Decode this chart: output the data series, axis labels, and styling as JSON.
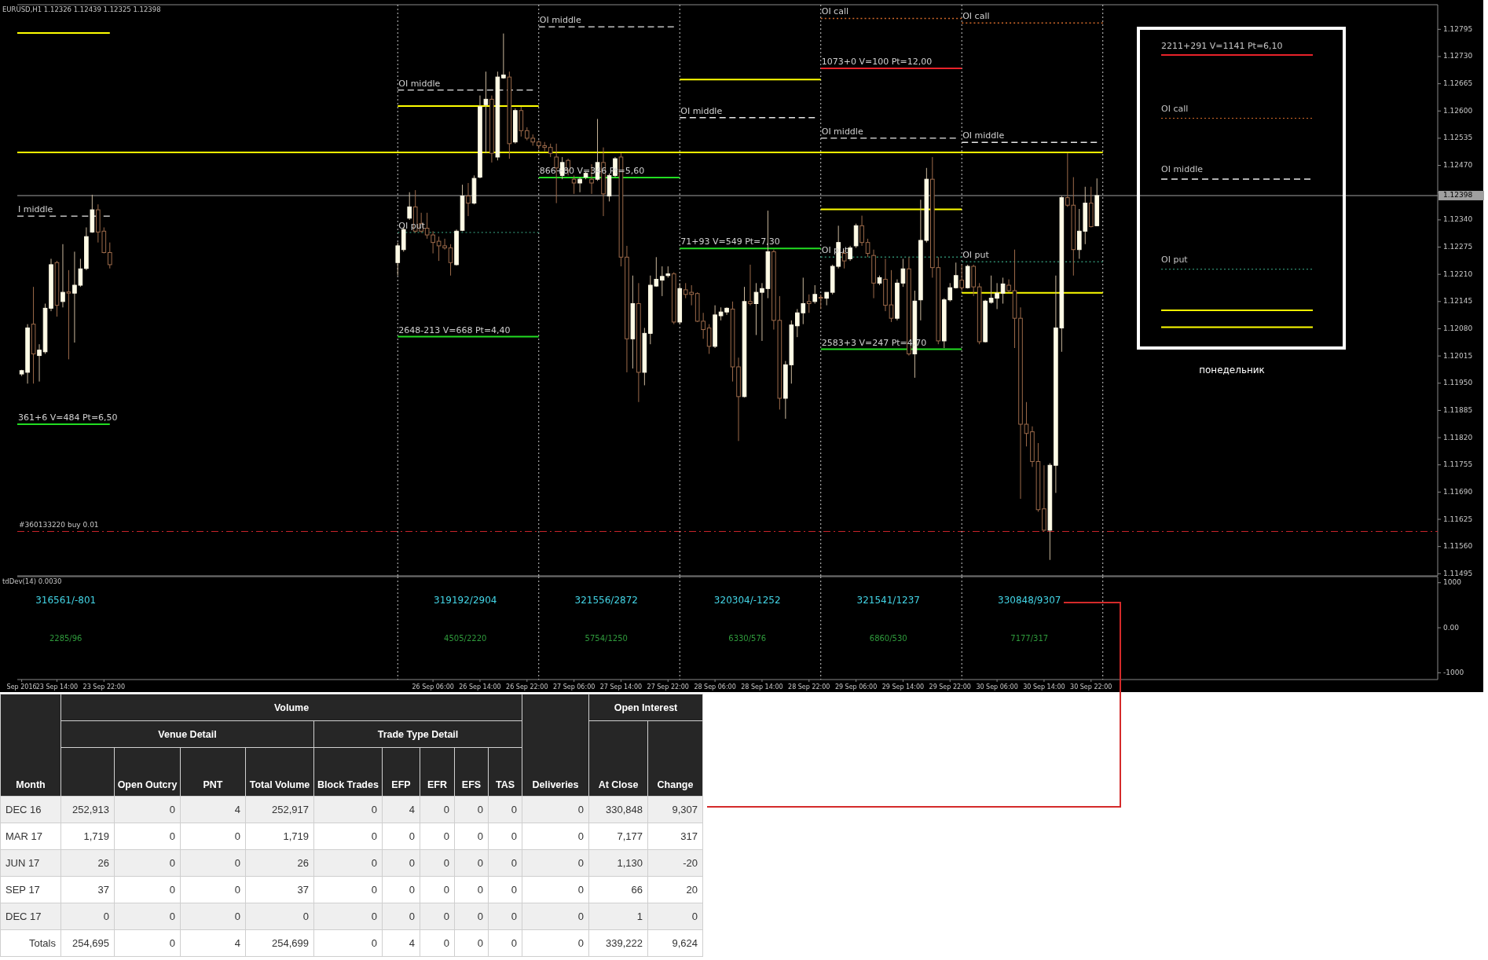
{
  "chart_data": [
    {
      "type": "candlestick",
      "title": "EURUSD,H1  1.12326 1.12439 1.12325 1.12398",
      "tick_labels": "y",
      "xlim": [
        "2016-09-23T07:15",
        "2016-10-03T09:00"
      ],
      "ylim": [
        1.1149,
        1.1285
      ],
      "yticks": [
        1.11495,
        {
          "value": 1.1156,
          "label": "1.11560"
        },
        1.11625,
        {
          "value": 1.1169,
          "label": "1.11690"
        },
        1.11755,
        {
          "value": 1.1182,
          "label": "1.11820"
        },
        1.11885,
        {
          "value": 1.1195,
          "label": "1.11950"
        },
        1.12015,
        {
          "value": 1.1208,
          "label": "1.12080"
        },
        1.12145,
        {
          "value": 1.1221,
          "label": "1.12210"
        },
        1.12275,
        {
          "value": 1.1234,
          "label": "1.12340"
        },
        {
          "value": 1.12405,
          "label": null
        },
        {
          "value": 1.1247,
          "label": "1.12470"
        },
        1.12535,
        {
          "value": 1.126,
          "label": "1.12600"
        },
        1.12665,
        {
          "value": 1.1273,
          "label": "1.12730"
        },
        1.12795
      ],
      "x": [
        "2016-09-23T08:00",
        "2016-09-23T09:00",
        "2016-09-23T10:00",
        "2016-09-23T11:00",
        "2016-09-23T12:00",
        "2016-09-23T13:00",
        "2016-09-23T14:00",
        "2016-09-23T15:00",
        "2016-09-23T16:00",
        "2016-09-23T17:00",
        "2016-09-23T18:00",
        "2016-09-23T19:00",
        "2016-09-23T20:00",
        "2016-09-23T21:00",
        "2016-09-23T22:00",
        "2016-09-23T23:00",
        "2016-09-26T00:00",
        "2016-09-26T01:00",
        "2016-09-26T02:00",
        "2016-09-26T03:00",
        "2016-09-26T04:00",
        "2016-09-26T05:00",
        "2016-09-26T06:00",
        "2016-09-26T07:00",
        "2016-09-26T08:00",
        "2016-09-26T09:00",
        "2016-09-26T10:00",
        "2016-09-26T11:00",
        "2016-09-26T12:00",
        "2016-09-26T13:00",
        "2016-09-26T14:00",
        "2016-09-26T15:00",
        "2016-09-26T16:00",
        "2016-09-26T17:00",
        "2016-09-26T18:00",
        "2016-09-26T19:00",
        "2016-09-26T20:00",
        "2016-09-26T21:00",
        "2016-09-26T22:00",
        "2016-09-26T23:00",
        "2016-09-27T00:00",
        "2016-09-27T01:00",
        "2016-09-27T02:00",
        "2016-09-27T03:00",
        "2016-09-27T04:00",
        "2016-09-27T05:00",
        "2016-09-27T06:00",
        "2016-09-27T07:00",
        "2016-09-27T08:00",
        "2016-09-27T09:00",
        "2016-09-27T10:00",
        "2016-09-27T11:00",
        "2016-09-27T12:00",
        "2016-09-27T13:00",
        "2016-09-27T14:00",
        "2016-09-27T15:00",
        "2016-09-27T16:00",
        "2016-09-27T17:00",
        "2016-09-27T18:00",
        "2016-09-27T19:00",
        "2016-09-27T20:00",
        "2016-09-27T21:00",
        "2016-09-27T22:00",
        "2016-09-27T23:00",
        "2016-09-28T00:00",
        "2016-09-28T01:00",
        "2016-09-28T02:00",
        "2016-09-28T03:00",
        "2016-09-28T04:00",
        "2016-09-28T05:00",
        "2016-09-28T06:00",
        "2016-09-28T07:00",
        "2016-09-28T08:00",
        "2016-09-28T09:00",
        "2016-09-28T10:00",
        "2016-09-28T11:00",
        "2016-09-28T12:00",
        "2016-09-28T13:00",
        "2016-09-28T14:00",
        "2016-09-28T15:00",
        "2016-09-28T16:00",
        "2016-09-28T17:00",
        "2016-09-28T18:00",
        "2016-09-28T19:00",
        "2016-09-28T20:00",
        "2016-09-28T21:00",
        "2016-09-28T22:00",
        "2016-09-28T23:00",
        "2016-09-29T00:00",
        "2016-09-29T01:00",
        "2016-09-29T02:00",
        "2016-09-29T03:00",
        "2016-09-29T04:00",
        "2016-09-29T05:00",
        "2016-09-29T06:00",
        "2016-09-29T07:00",
        "2016-09-29T08:00",
        "2016-09-29T09:00",
        "2016-09-29T10:00",
        "2016-09-29T11:00",
        "2016-09-29T12:00",
        "2016-09-29T13:00",
        "2016-09-29T14:00",
        "2016-09-29T15:00",
        "2016-09-29T16:00",
        "2016-09-29T17:00",
        "2016-09-29T18:00",
        "2016-09-29T19:00",
        "2016-09-29T20:00",
        "2016-09-29T21:00",
        "2016-09-29T22:00",
        "2016-09-29T23:00",
        "2016-09-30T00:00",
        "2016-09-30T01:00",
        "2016-09-30T02:00",
        "2016-09-30T03:00",
        "2016-09-30T04:00",
        "2016-09-30T05:00",
        "2016-09-30T06:00",
        "2016-09-30T07:00",
        "2016-09-30T08:00",
        "2016-09-30T09:00",
        "2016-09-30T10:00",
        "2016-09-30T11:00",
        "2016-09-30T12:00",
        "2016-09-30T13:00",
        "2016-09-30T14:00",
        "2016-09-30T15:00",
        "2016-09-30T16:00",
        "2016-09-30T17:00",
        "2016-09-30T18:00",
        "2016-09-30T19:00",
        "2016-09-30T20:00",
        "2016-09-30T21:00",
        "2016-09-30T22:00",
        "2016-09-30T23:00"
      ],
      "ohlc": [
        [
          1.11972,
          1.11982,
          1.11967,
          1.1198
        ],
        [
          1.11976,
          1.12091,
          1.11949,
          1.12082
        ],
        [
          1.12091,
          1.1218,
          1.11949,
          1.1202
        ],
        [
          1.12016,
          1.12043,
          1.11954,
          1.12029
        ],
        [
          1.12025,
          1.1214,
          1.1202,
          1.12129
        ],
        [
          1.12129,
          1.12247,
          1.12122,
          1.12233
        ],
        [
          1.12238,
          1.12242,
          1.12109,
          1.12136
        ],
        [
          1.12145,
          1.12282,
          1.12131,
          1.12167
        ],
        [
          1.12168,
          1.1222,
          1.12007,
          1.12165
        ],
        [
          1.12165,
          1.12264,
          1.12047,
          1.12184
        ],
        [
          1.12184,
          1.12247,
          1.1218,
          1.12223
        ],
        [
          1.12224,
          1.12322,
          1.1222,
          1.123
        ],
        [
          1.12311,
          1.124,
          1.12309,
          1.12364
        ],
        [
          1.12364,
          1.12377,
          1.12286,
          1.12311
        ],
        [
          1.12313,
          1.12322,
          1.1226,
          1.12262
        ],
        [
          1.12262,
          1.12286,
          1.12224,
          1.12233
        ],
        [
          1.12238,
          1.12286,
          1.12207,
          1.12278
        ],
        [
          1.12269,
          1.12322,
          1.12264,
          1.12317
        ],
        [
          1.12344,
          1.12406,
          1.1234,
          1.12371
        ],
        [
          1.12371,
          1.12411,
          1.12309,
          1.12313
        ],
        [
          1.12331,
          1.12357,
          1.12309,
          1.12313
        ],
        [
          1.1232,
          1.12357,
          1.12295,
          1.12304
        ],
        [
          1.12304,
          1.12313,
          1.1226,
          1.12286
        ],
        [
          1.12289,
          1.123,
          1.12242,
          1.12278
        ],
        [
          1.12278,
          1.12295,
          1.12269,
          1.12273
        ],
        [
          1.12273,
          1.12282,
          1.12207,
          1.12238
        ],
        [
          1.12233,
          1.12317,
          1.12231,
          1.12313
        ],
        [
          1.12315,
          1.12424,
          1.12313,
          1.12397
        ],
        [
          1.12397,
          1.12428,
          1.12349,
          1.1238
        ],
        [
          1.1238,
          1.12446,
          1.12377,
          1.12439
        ],
        [
          1.12442,
          1.12637,
          1.12439,
          1.1261
        ],
        [
          1.12615,
          1.12694,
          1.12499,
          1.12628
        ],
        [
          1.12628,
          1.12637,
          1.12477,
          1.12499
        ],
        [
          1.1249,
          1.12694,
          1.12482,
          1.12681
        ],
        [
          1.12679,
          1.12785,
          1.12677,
          1.12686
        ],
        [
          1.12681,
          1.12694,
          1.12486,
          1.12522
        ],
        [
          1.12526,
          1.12606,
          1.12522,
          1.12601
        ],
        [
          1.12601,
          1.1261,
          1.12539,
          1.12553
        ],
        [
          1.12553,
          1.12561,
          1.1253,
          1.12535
        ],
        [
          1.12535,
          1.12544,
          1.12517,
          1.12526
        ],
        [
          1.12526,
          1.1253,
          1.12508,
          1.12517
        ],
        [
          1.12517,
          1.12526,
          1.12504,
          1.12513
        ],
        [
          1.12513,
          1.12522,
          1.1249,
          1.12499
        ],
        [
          1.1249,
          1.12522,
          1.1238,
          1.12464
        ],
        [
          1.12446,
          1.1249,
          1.12437,
          1.12477
        ],
        [
          1.12482,
          1.12486,
          1.12446,
          1.12459
        ],
        [
          1.12437,
          1.12446,
          1.12402,
          1.12428
        ],
        [
          1.12428,
          1.12442,
          1.12406,
          1.12437
        ],
        [
          1.12442,
          1.12455,
          1.12437,
          1.12451
        ],
        [
          1.12437,
          1.12473,
          1.12402,
          1.12428
        ],
        [
          1.12437,
          1.12581,
          1.12433,
          1.12477
        ],
        [
          1.12477,
          1.12513,
          1.12349,
          1.12402
        ],
        [
          1.12397,
          1.12451,
          1.12384,
          1.12446
        ],
        [
          1.12446,
          1.1249,
          1.12442,
          1.12486
        ],
        [
          1.1249,
          1.12499,
          1.12229,
          1.12251
        ],
        [
          1.12251,
          1.12278,
          1.11976,
          1.12056
        ],
        [
          1.12056,
          1.12207,
          1.11985,
          1.1214
        ],
        [
          1.1214,
          1.12189,
          1.11905,
          1.11976
        ],
        [
          1.11976,
          1.12082,
          1.11945,
          1.12069
        ],
        [
          1.12069,
          1.12207,
          1.12043,
          1.12184
        ],
        [
          1.12182,
          1.12251,
          1.1218,
          1.12198
        ],
        [
          1.12196,
          1.12229,
          1.12158,
          1.12205
        ],
        [
          1.12207,
          1.12229,
          1.12202,
          1.12211
        ],
        [
          1.12211,
          1.12215,
          1.12091,
          1.12096
        ],
        [
          1.12096,
          1.12189,
          1.12091,
          1.12176
        ],
        [
          1.12173,
          1.12189,
          1.12153,
          1.12162
        ],
        [
          1.12167,
          1.12184,
          1.12136,
          1.12162
        ],
        [
          1.12164,
          1.12167,
          1.12096,
          1.12098
        ],
        [
          1.12098,
          1.12118,
          1.12056,
          1.12078
        ],
        [
          1.12082,
          1.12091,
          1.1202,
          1.12038
        ],
        [
          1.12038,
          1.12136,
          1.12034,
          1.12113
        ],
        [
          1.12111,
          1.12131,
          1.121,
          1.1212
        ],
        [
          1.1212,
          1.12131,
          1.12113,
          1.12129
        ],
        [
          1.12127,
          1.12145,
          1.11954,
          1.11989
        ],
        [
          1.11989,
          1.12011,
          1.11812,
          1.11918
        ],
        [
          1.11918,
          1.1218,
          1.11916,
          1.12145
        ],
        [
          1.12145,
          1.12233,
          1.12136,
          1.1214
        ],
        [
          1.1214,
          1.12189,
          1.12065,
          1.12167
        ],
        [
          1.12167,
          1.12189,
          1.12051,
          1.12176
        ],
        [
          1.12176,
          1.12362,
          1.12153,
          1.12264
        ],
        [
          1.12264,
          1.12269,
          1.12078,
          1.121
        ],
        [
          1.121,
          1.12158,
          1.11887,
          1.11914
        ],
        [
          1.11914,
          1.12003,
          1.11865,
          1.11994
        ],
        [
          1.11994,
          1.121,
          1.11949,
          1.12089
        ],
        [
          1.12087,
          1.12127,
          1.1206,
          1.12118
        ],
        [
          1.12118,
          1.12202,
          1.12091,
          1.1214
        ],
        [
          1.12145,
          1.12162,
          1.12118,
          1.1214
        ],
        [
          1.12145,
          1.12184,
          1.1214,
          1.12162
        ],
        [
          1.12155,
          1.12162,
          1.12127,
          1.12153
        ],
        [
          1.12153,
          1.12167,
          1.12136,
          1.12167
        ],
        [
          1.12167,
          1.12233,
          1.12162,
          1.12229
        ],
        [
          1.12229,
          1.12326,
          1.12224,
          1.12286
        ],
        [
          1.1226,
          1.12269,
          1.12224,
          1.12242
        ],
        [
          1.12247,
          1.12278,
          1.12242,
          1.12273
        ],
        [
          1.12278,
          1.12331,
          1.12273,
          1.12326
        ],
        [
          1.12326,
          1.1235,
          1.12278,
          1.12286
        ],
        [
          1.12286,
          1.12295,
          1.12251,
          1.1226
        ],
        [
          1.12255,
          1.12269,
          1.12153,
          1.12189
        ],
        [
          1.12189,
          1.12207,
          1.12184,
          1.12202
        ],
        [
          1.12198,
          1.12247,
          1.12122,
          1.12136
        ],
        [
          1.12137,
          1.1222,
          1.12096,
          1.12105
        ],
        [
          1.12105,
          1.12198,
          1.121,
          1.12189
        ],
        [
          1.12189,
          1.12247,
          1.1218,
          1.12223
        ],
        [
          1.12223,
          1.12251,
          1.12016,
          1.1202
        ],
        [
          1.1202,
          1.12171,
          1.11963,
          1.12146
        ],
        [
          1.12149,
          1.12388,
          1.121,
          1.12291
        ],
        [
          1.12291,
          1.12464,
          1.12286,
          1.12437
        ],
        [
          1.12437,
          1.1249,
          1.12202,
          1.12226
        ],
        [
          1.12226,
          1.12251,
          1.12043,
          1.12051
        ],
        [
          1.12051,
          1.12153,
          1.12034,
          1.12149
        ],
        [
          1.12149,
          1.12189,
          1.12145,
          1.12178
        ],
        [
          1.12178,
          1.12238,
          1.12176,
          1.12207
        ],
        [
          1.12196,
          1.12233,
          1.12171,
          1.12178
        ],
        [
          1.12178,
          1.12233,
          1.12176,
          1.12229
        ],
        [
          1.12229,
          1.12233,
          1.12158,
          1.1218
        ],
        [
          1.1218,
          1.12189,
          1.12043,
          1.12049
        ],
        [
          1.12049,
          1.12149,
          1.12047,
          1.12146
        ],
        [
          1.12143,
          1.12207,
          1.1214,
          1.12153
        ],
        [
          1.12153,
          1.12189,
          1.12127,
          1.12165
        ],
        [
          1.12165,
          1.12202,
          1.1214,
          1.12187
        ],
        [
          1.12184,
          1.12198,
          1.12167,
          1.12171
        ],
        [
          1.12171,
          1.12269,
          1.12034,
          1.12105
        ],
        [
          1.12105,
          1.12131,
          1.11674,
          1.11852
        ],
        [
          1.11852,
          1.11905,
          1.11799,
          1.1183
        ],
        [
          1.11834,
          1.11847,
          1.1175,
          1.11763
        ],
        [
          1.11763,
          1.11807,
          1.11643,
          1.11648
        ],
        [
          1.1165,
          1.11754,
          1.11596,
          1.11599
        ],
        [
          1.11599,
          1.11759,
          1.11528,
          1.11754
        ],
        [
          1.11754,
          1.12207,
          1.11688,
          1.12082
        ],
        [
          1.12082,
          1.12397,
          1.12025,
          1.12393
        ],
        [
          1.12393,
          1.12499,
          1.12371,
          1.12375
        ],
        [
          1.12375,
          1.12442,
          1.12207,
          1.12269
        ],
        [
          1.12269,
          1.12366,
          1.12247,
          1.12313
        ],
        [
          1.12313,
          1.12419,
          1.12282,
          1.1238
        ],
        [
          1.1238,
          1.12419,
          1.12322,
          1.12324
        ],
        [
          1.12326,
          1.12439,
          1.12325,
          1.12398
        ]
      ],
      "series": [
        {
          "type": "line",
          "x": [
            "2016-09-23T07:15",
            "2016-09-23T23:00"
          ],
          "values": [
            1.12786,
            1.12786
          ],
          "color": "#ffff00"
        },
        {
          "type": "line",
          "x": [
            "2016-09-23T07:15",
            "2016-10-01T00:00"
          ],
          "values": [
            1.12501,
            1.12501
          ],
          "color": "#ffff00"
        },
        {
          "type": "line",
          "name": "I middle",
          "x": [
            "2016-09-23T07:15",
            "2016-09-23T23:00"
          ],
          "values": [
            1.12349,
            1.12349
          ],
          "color": "#e6e6e6",
          "line_style": "dashed"
        },
        {
          "type": "line",
          "name": "361+6 V=484 Pt=6,50",
          "x": [
            "2016-09-23T07:15",
            "2016-09-23T23:00"
          ],
          "values": [
            1.11852,
            1.11852
          ],
          "color": "#22dd22"
        },
        {
          "type": "line",
          "name": "OI middle",
          "x": [
            "2016-09-26T00:00",
            "2016-09-26T23:00"
          ],
          "values": [
            1.1265,
            1.1265
          ],
          "color": "#e6e6e6",
          "line_style": "dashed"
        },
        {
          "type": "line",
          "x": [
            "2016-09-26T00:00",
            "2016-09-27T00:00"
          ],
          "values": [
            1.12612,
            1.12612
          ],
          "color": "#ffff00"
        },
        {
          "type": "line",
          "name": "OI put",
          "x": [
            "2016-09-26T00:00",
            "2016-09-27T00:00"
          ],
          "values": [
            1.1231,
            1.1231
          ],
          "color": "#2e8b6e",
          "line_style": "dotted"
        },
        {
          "type": "line",
          "name": "2648-213 V=668 Pt=4,40",
          "x": [
            "2016-09-26T00:00",
            "2016-09-27T00:00"
          ],
          "values": [
            1.12061,
            1.12061
          ],
          "color": "#22dd22"
        },
        {
          "type": "line",
          "name": "OI middle",
          "x": [
            "2016-09-27T00:00",
            "2016-09-27T23:00"
          ],
          "values": [
            1.12801,
            1.12801
          ],
          "color": "#e6e6e6",
          "line_style": "dashed"
        },
        {
          "type": "line",
          "name": "866+80 V=346 Pt=5,60",
          "x": [
            "2016-09-27T00:00",
            "2016-09-28T00:00"
          ],
          "values": [
            1.12441,
            1.12441
          ],
          "color": "#22dd22"
        },
        {
          "type": "line",
          "x": [
            "2016-09-28T00:00",
            "2016-09-29T00:00"
          ],
          "values": [
            1.12675,
            1.12675
          ],
          "color": "#ffff00"
        },
        {
          "type": "line",
          "name": "OI middle",
          "x": [
            "2016-09-28T00:00",
            "2016-09-28T23:00"
          ],
          "values": [
            1.12584,
            1.12584
          ],
          "color": "#e6e6e6",
          "line_style": "dashed"
        },
        {
          "type": "line",
          "name": "71+93 V=549 Pt=7,30",
          "x": [
            "2016-09-28T00:00",
            "2016-09-29T00:00"
          ],
          "values": [
            1.12272,
            1.12272
          ],
          "color": "#22dd22"
        },
        {
          "type": "line",
          "name": "OI call",
          "x": [
            "2016-09-29T00:00",
            "2016-09-30T00:00"
          ],
          "values": [
            1.12821,
            1.12821
          ],
          "color": "#d2692a",
          "line_style": "dotted"
        },
        {
          "type": "line",
          "name": "1073+0 V=100 Pt=12,00",
          "x": [
            "2016-09-29T00:00",
            "2016-09-30T00:00"
          ],
          "values": [
            1.12702,
            1.12702
          ],
          "color": "#e8222a"
        },
        {
          "type": "line",
          "name": "OI middle",
          "x": [
            "2016-09-29T00:00",
            "2016-09-29T23:00"
          ],
          "values": [
            1.12535,
            1.12535
          ],
          "color": "#e6e6e6",
          "line_style": "dashed"
        },
        {
          "type": "line",
          "x": [
            "2016-09-29T00:00",
            "2016-09-30T00:00"
          ],
          "values": [
            1.12365,
            1.12365
          ],
          "color": "#ffff00"
        },
        {
          "type": "line",
          "name": "OI put",
          "x": [
            "2016-09-29T00:00",
            "2016-09-30T00:00"
          ],
          "values": [
            1.12251,
            1.12251
          ],
          "color": "#2e8b6e",
          "line_style": "dotted"
        },
        {
          "type": "line",
          "name": "2583+3 V=247 Pt=4,70",
          "x": [
            "2016-09-29T00:00",
            "2016-09-30T00:00"
          ],
          "values": [
            1.12031,
            1.12031
          ],
          "color": "#22dd22"
        },
        {
          "type": "line",
          "name": "OI call",
          "x": [
            "2016-09-30T00:00",
            "2016-10-01T00:00"
          ],
          "values": [
            1.1281,
            1.1281
          ],
          "color": "#d2692a",
          "line_style": "dotted"
        },
        {
          "type": "line",
          "name": "OI middle",
          "x": [
            "2016-09-30T00:00",
            "2016-09-30T23:00"
          ],
          "values": [
            1.12525,
            1.12525
          ],
          "color": "#e6e6e6",
          "line_style": "dashed"
        },
        {
          "type": "line",
          "name": "OI put",
          "x": [
            "2016-09-30T00:00",
            "2016-10-01T00:00"
          ],
          "values": [
            1.1224,
            1.1224
          ],
          "color": "#2e8b6e",
          "line_style": "dotted"
        },
        {
          "type": "line",
          "x": [
            "2016-09-30T00:00",
            "2016-10-01T00:00"
          ],
          "values": [
            1.12166,
            1.12166
          ],
          "color": "#ffff00"
        }
      ],
      "ref_lines": [
        {
          "axis": "y",
          "value": 1.12398,
          "label": "1.12398",
          "color": "#a0a0a0"
        },
        {
          "axis": "y",
          "value": 1.11596,
          "label": "#360133220 buy 0.01",
          "color": "#c8252b",
          "line_style": "dashed"
        },
        {
          "axis": "x",
          "value": "2016-09-26T00:00",
          "color": "#c8c8c8",
          "line_style": "dotted"
        },
        {
          "axis": "x",
          "value": "2016-09-27T00:00",
          "color": "#c8c8c8",
          "line_style": "dotted"
        },
        {
          "axis": "x",
          "value": "2016-09-28T00:00",
          "color": "#c8c8c8",
          "line_style": "dotted"
        },
        {
          "axis": "x",
          "value": "2016-09-29T00:00",
          "color": "#c8c8c8",
          "line_style": "dotted"
        },
        {
          "axis": "x",
          "value": "2016-09-30T00:00",
          "color": "#c8c8c8",
          "line_style": "dotted"
        },
        {
          "axis": "x",
          "value": "2016-10-01T00:00",
          "color": "#c8c8c8",
          "line_style": "dotted"
        }
      ],
      "annotations": [
        "2211+291 V=1141 Pt=6,10",
        "OI call",
        "OI middle",
        "OI put",
        "понедельник"
      ]
    },
    {
      "type": "line",
      "title": "tdDev(14) 0.0030",
      "xlim": [
        "2016-09-23T07:15",
        "2016-10-03T09:00"
      ],
      "ylim": [
        -1150,
        1100
      ],
      "yticks": [
        1000,
        {
          "value": 0,
          "label": "0.00"
        },
        -1000
      ],
      "xticks": [
        {
          "value": "2016-09-23T08:00",
          "label": "Sep 2016"
        },
        {
          "value": "2016-09-23T14:00",
          "label": "23 Sep 14:00"
        },
        {
          "value": "2016-09-23T22:00",
          "label": "23 Sep 22:00"
        },
        {
          "value": "2016-09-26T06:00",
          "label": "26 Sep 06:00"
        },
        {
          "value": "2016-09-26T14:00",
          "label": "26 Sep 14:00"
        },
        {
          "value": "2016-09-26T22:00",
          "label": "26 Sep 22:00"
        },
        {
          "value": "2016-09-27T06:00",
          "label": "27 Sep 06:00"
        },
        {
          "value": "2016-09-27T14:00",
          "label": "27 Sep 14:00"
        },
        {
          "value": "2016-09-27T22:00",
          "label": "27 Sep 22:00"
        },
        {
          "value": "2016-09-28T06:00",
          "label": "28 Sep 06:00"
        },
        {
          "value": "2016-09-28T14:00",
          "label": "28 Sep 14:00"
        },
        {
          "value": "2016-09-28T22:00",
          "label": "28 Sep 22:00"
        },
        {
          "value": "2016-09-29T06:00",
          "label": "29 Sep 06:00"
        },
        {
          "value": "2016-09-29T14:00",
          "label": "29 Sep 14:00"
        },
        {
          "value": "2016-09-29T22:00",
          "label": "29 Sep 22:00"
        },
        {
          "value": "2016-09-30T06:00",
          "label": "30 Sep 06:00"
        },
        {
          "value": "2016-09-30T14:00",
          "label": "30 Sep 14:00"
        },
        {
          "value": "2016-09-30T22:00",
          "label": "30 Sep 22:00"
        }
      ],
      "ref_lines": [
        {
          "axis": "x",
          "value": "2016-09-26T00:00",
          "color": "#c8c8c8",
          "line_style": "dotted"
        },
        {
          "axis": "x",
          "value": "2016-09-27T00:00",
          "color": "#c8c8c8",
          "line_style": "dotted"
        },
        {
          "axis": "x",
          "value": "2016-09-28T00:00",
          "color": "#c8c8c8",
          "line_style": "dotted"
        },
        {
          "axis": "x",
          "value": "2016-09-29T00:00",
          "color": "#c8c8c8",
          "line_style": "dotted"
        },
        {
          "axis": "x",
          "value": "2016-09-30T00:00",
          "color": "#c8c8c8",
          "line_style": "dotted"
        },
        {
          "axis": "x",
          "value": "2016-10-01T00:00",
          "color": "#c8c8c8",
          "line_style": "dotted"
        }
      ],
      "annotations": [
        "316561/-801",
        "319192/2904",
        "321556/2872",
        "320304/-1252",
        "321541/1237",
        "330848/9307",
        "2285/96",
        "4505/2220",
        "5754/1250",
        "6330/576",
        "6860/530",
        "7177/317"
      ]
    },
    {
      "type": "other",
      "categories": [
        "Month",
        null,
        "Open Outcry",
        "PNT",
        "Total Volume",
        "Block Trades",
        "EFP",
        "EFR",
        "EFS",
        "TAS",
        "Deliveries",
        "At Close",
        "Change"
      ],
      "y_categories": [
        "DEC 16",
        "MAR 17",
        "JUN 17",
        "SEP 17",
        "DEC 17",
        "Totals"
      ],
      "cell_labels": [
        [
          "252,913",
          "0",
          "4",
          "252,917",
          "0",
          "4",
          "0",
          "0",
          "0",
          "0",
          "330,848",
          "9,307"
        ],
        [
          "1,719",
          "0",
          "0",
          "1,719",
          "0",
          "0",
          "0",
          "0",
          "0",
          "0",
          "7,177",
          "317"
        ],
        [
          "26",
          "0",
          "0",
          "26",
          "0",
          "0",
          "0",
          "0",
          "0",
          "0",
          "1,130",
          "-20"
        ],
        [
          "37",
          "0",
          "0",
          "37",
          "0",
          "0",
          "0",
          "0",
          "0",
          "0",
          "66",
          "20"
        ],
        [
          "0",
          "0",
          "0",
          "0",
          "0",
          "0",
          "0",
          "0",
          "0",
          "0",
          "1",
          "0"
        ],
        [
          "254,695",
          "0",
          "4",
          "254,699",
          "0",
          "4",
          "0",
          "0",
          "0",
          "0",
          "339,222",
          "9,624"
        ]
      ],
      "annotations": [
        "Volume",
        "Venue Detail",
        "Trade Type Detail",
        "Open Interest"
      ]
    }
  ]
}
